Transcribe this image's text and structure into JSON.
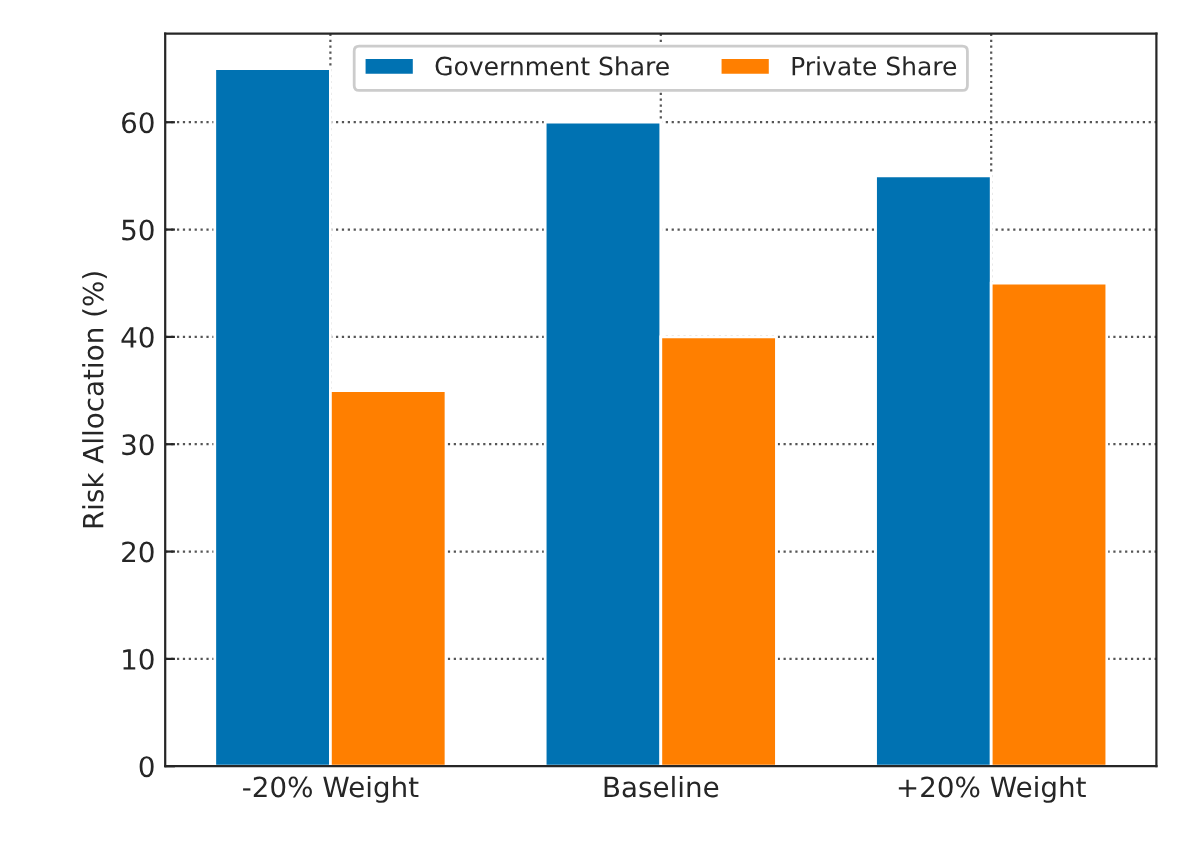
{
  "chart_data": {
    "type": "bar",
    "ylabel": "Risk Allocation (%)",
    "categories": [
      "-20% Weight",
      "Baseline",
      "+20% Weight"
    ],
    "series": [
      {
        "name": "Government Share",
        "color": "#0072b2",
        "values": [
          65,
          60,
          55
        ]
      },
      {
        "name": "Private Share",
        "color": "#ff7f00",
        "values": [
          35,
          40,
          45
        ]
      }
    ],
    "ylim": [
      0,
      68.25
    ],
    "yticks": [
      0,
      10,
      20,
      30,
      40,
      50,
      60
    ],
    "grid": true,
    "legend": "top"
  }
}
